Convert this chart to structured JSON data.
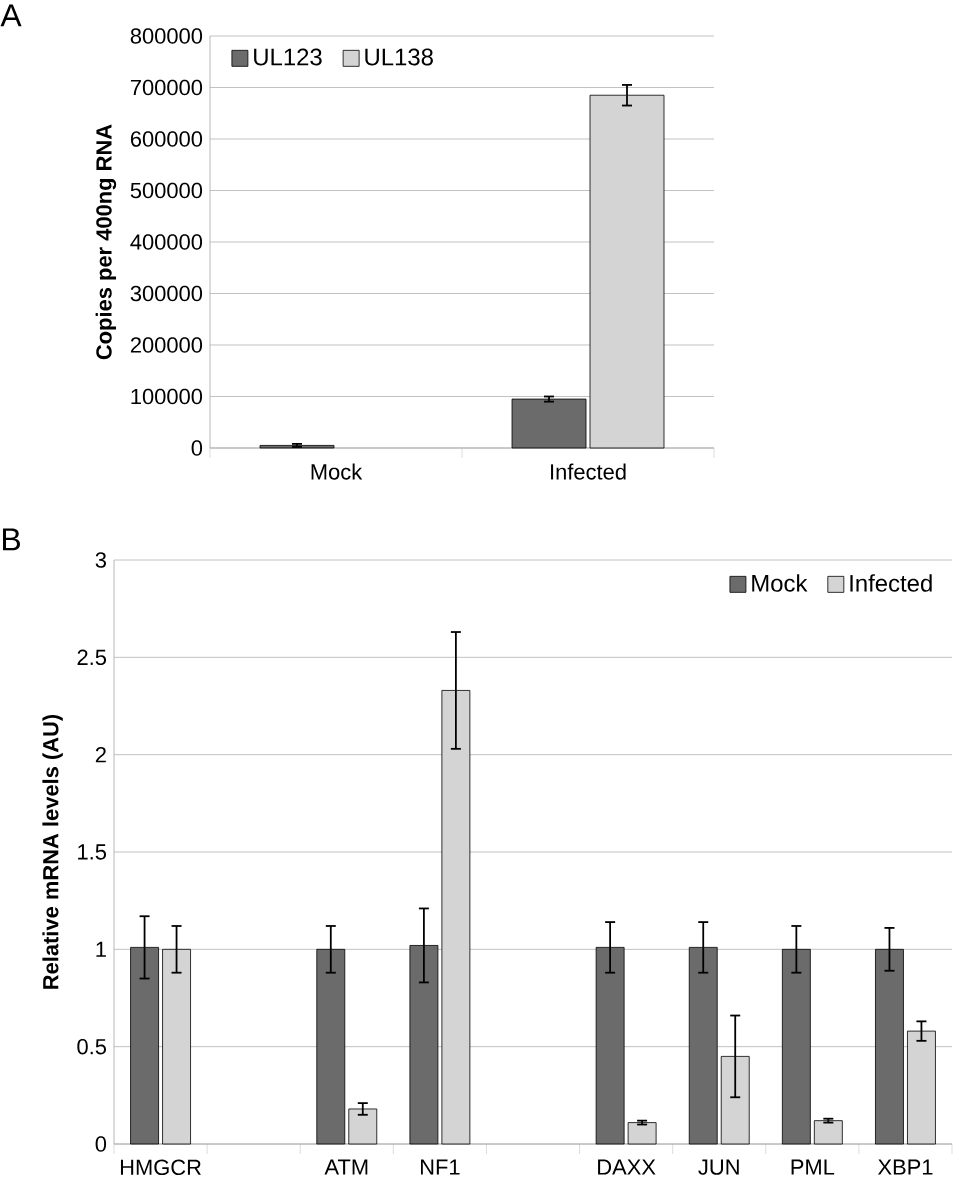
{
  "chart_data": [
    {
      "type": "bar",
      "ylabel": "Copies per 400ng RNA",
      "annotations": [
        "A"
      ],
      "categories": [
        "Mock",
        "Infected"
      ],
      "series": [
        {
          "name": "UL123",
          "color": "#6b6b6b",
          "values": [
            5000,
            95000
          ],
          "errors": [
            3000,
            5000
          ]
        },
        {
          "name": "UL138",
          "color": "#d4d4d4",
          "values": [
            null,
            685000
          ],
          "errors": [
            null,
            20000
          ]
        }
      ],
      "ylim": [
        0,
        800000
      ],
      "yticks": [
        0,
        100000,
        200000,
        300000,
        400000,
        500000,
        600000,
        700000,
        800000
      ],
      "grid": "y",
      "legend": "top left"
    },
    {
      "type": "bar",
      "ylabel": "Relative mRNA levels (AU)",
      "annotations": [
        "B"
      ],
      "categories": [
        "HMGCR",
        null,
        "ATM",
        "NF1",
        null,
        "DAXX",
        "JUN",
        "PML",
        "XBP1"
      ],
      "series": [
        {
          "name": "Mock",
          "color": "#6b6b6b",
          "values": [
            1.01,
            null,
            1.0,
            1.02,
            null,
            1.01,
            1.01,
            1.0,
            1.0
          ],
          "errors": [
            0.16,
            null,
            0.12,
            0.19,
            null,
            0.13,
            0.13,
            0.12,
            0.11
          ]
        },
        {
          "name": "Infected",
          "color": "#d4d4d4",
          "values": [
            1.0,
            null,
            0.18,
            2.33,
            null,
            0.11,
            0.45,
            0.12,
            0.58
          ],
          "errors": [
            0.12,
            null,
            0.03,
            0.3,
            null,
            0.01,
            0.21,
            0.01,
            0.05
          ]
        }
      ],
      "ylim": [
        0,
        3
      ],
      "yticks": [
        0,
        0.5,
        1,
        1.5,
        2,
        2.5,
        3
      ],
      "grid": "y",
      "legend": "top right"
    }
  ]
}
